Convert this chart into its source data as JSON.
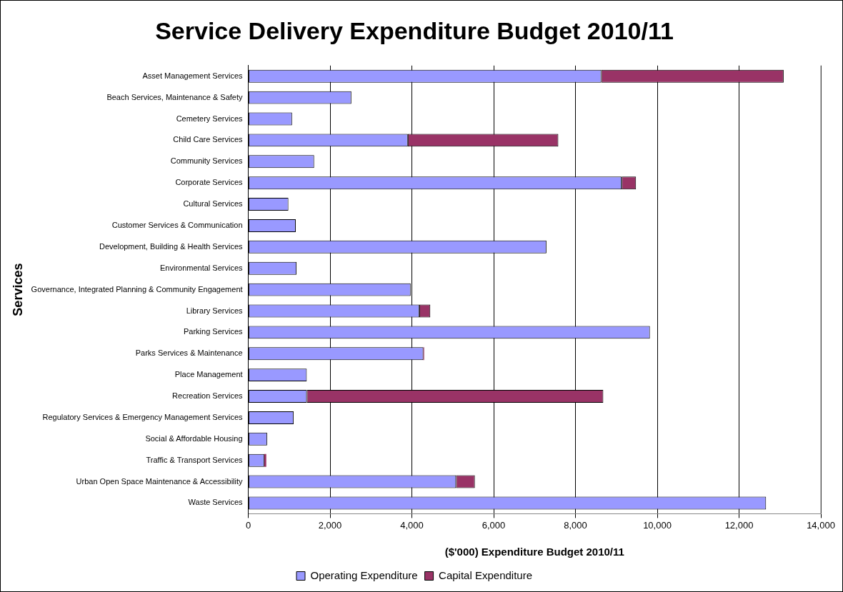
{
  "chart_data": {
    "type": "bar",
    "orientation": "horizontal",
    "stacked": true,
    "title": "Service Delivery Expenditure Budget 2010/11",
    "xlabel": "($'000) Expenditure Budget 2010/11",
    "ylabel": "Services",
    "categories": [
      "Asset Management Services",
      "Beach Services, Maintenance & Safety",
      "Cemetery Services",
      "Child Care Services",
      "Community Services",
      "Corporate Services",
      "Cultural Services",
      "Customer Services & Communication",
      "Development, Building & Health Services",
      "Environmental Services",
      "Governance, Integrated Planning & Community Engagement",
      "Library Services",
      "Parking Services",
      "Parks Services & Maintenance",
      "Place Management",
      "Recreation Services",
      "Regulatory Services & Emergency Management Services",
      "Social & Affordable Housing",
      "Traffic & Transport Services",
      "Urban Open Space Maintenance & Accessibility",
      "Waste Services"
    ],
    "series": [
      {
        "name": "Operating Expenditure",
        "color": "#9999ff",
        "values": [
          8630,
          2520,
          1070,
          3900,
          1610,
          9130,
          980,
          1160,
          7290,
          1180,
          3970,
          4180,
          9820,
          4280,
          1430,
          1430,
          1110,
          460,
          390,
          5080,
          12660
        ]
      },
      {
        "name": "Capital Expenditure",
        "color": "#993366",
        "values": [
          4460,
          null,
          null,
          3680,
          null,
          350,
          null,
          null,
          null,
          null,
          null,
          270,
          null,
          20,
          null,
          7250,
          null,
          null,
          50,
          460,
          null
        ]
      }
    ],
    "xlim": [
      0,
      14000
    ],
    "xticks": [
      0,
      {
        "value": 2000,
        "label": "2,000"
      },
      {
        "value": 4000,
        "label": "4,000"
      },
      {
        "value": 6000,
        "label": "6,000"
      },
      {
        "value": 8000,
        "label": "8,000"
      },
      {
        "value": 10000,
        "label": "10,000"
      },
      {
        "value": 12000,
        "label": "12,000"
      },
      {
        "value": 14000,
        "label": "14,000"
      }
    ],
    "grid": "x",
    "legend": "bottom"
  }
}
